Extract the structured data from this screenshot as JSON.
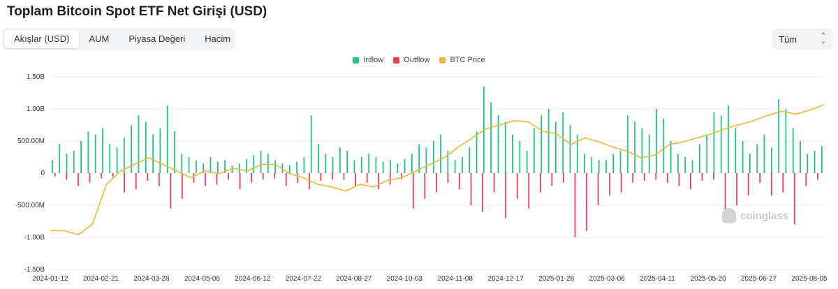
{
  "title": "Toplam Bitcoin Spot ETF Net Girişi (USD)",
  "tabs": [
    {
      "label": "Akışlar (USD)",
      "active": true
    },
    {
      "label": "AUM",
      "active": false
    },
    {
      "label": "Piyasa Değeri",
      "active": false
    },
    {
      "label": "Hacim",
      "active": false
    }
  ],
  "range_select": {
    "value": "Tüm"
  },
  "legend": [
    {
      "label": "Inflow",
      "color": "#1fc47e"
    },
    {
      "label": "Outflow",
      "color": "#ea3b5a"
    },
    {
      "label": "BTC Price",
      "color": "#e8b93a"
    }
  ],
  "watermark": "coinglass",
  "chart_data": {
    "type": "bar",
    "title": "Toplam Bitcoin Spot ETF Net Girişi (USD)",
    "y_ticks": [
      "1.50B",
      "1.00B",
      "500.00M",
      "0",
      "-500.00M",
      "-1.00B",
      "-1.50B"
    ],
    "ylim": [
      -1500000000,
      1500000000
    ],
    "x_ticks": [
      "2024-01-12",
      "2024-02-21",
      "2024-03-28",
      "2024-05-06",
      "2024-06-12",
      "2024-07-22",
      "2024-08-27",
      "2024-10-03",
      "2024-11-08",
      "2024-12-17",
      "2025-01-28",
      "2025-03-06",
      "2025-04-11",
      "2025-05-20",
      "2025-06-27",
      "2025-08-05"
    ],
    "grid": true,
    "legend_position": "top-center",
    "series": [
      {
        "name": "Inflow",
        "color": "#1fc47e",
        "values_millions_by_period": [
          200,
          450,
          300,
          350,
          500,
          650,
          600,
          700,
          450,
          400,
          550,
          750,
          900,
          800,
          600,
          700,
          1050,
          650,
          300,
          250,
          200,
          150,
          250,
          180,
          200,
          120,
          150,
          220,
          280,
          350,
          300,
          200,
          150,
          120,
          180,
          250,
          900,
          450,
          300,
          250,
          400,
          350,
          200,
          250,
          300,
          250,
          180,
          200,
          150,
          220,
          300,
          450,
          400,
          500,
          600,
          350,
          200,
          250,
          400,
          650,
          1350,
          1100,
          900,
          800,
          600,
          500,
          350,
          700,
          900,
          1000,
          800,
          950,
          750,
          600,
          300,
          250,
          200,
          200,
          300,
          350,
          900,
          800,
          700,
          600,
          1000,
          850,
          500,
          300,
          250,
          200,
          450,
          600,
          950,
          900,
          1050,
          700,
          500,
          300,
          450,
          600,
          400,
          1150,
          1000,
          700,
          500,
          300,
          350,
          420
        ]
      },
      {
        "name": "Outflow",
        "color": "#ea3b5a",
        "values_millions_by_period": [
          -50,
          -100,
          -200,
          -150,
          -80,
          -60,
          -300,
          -250,
          -120,
          -200,
          -550,
          -400,
          -150,
          -200,
          -180,
          -100,
          -250,
          -150,
          -100,
          -80,
          -200,
          -150,
          -250,
          -120,
          -100,
          -100,
          -200,
          -150,
          -250,
          -180,
          -100,
          -550,
          -400,
          -300,
          -150,
          -250,
          -500,
          -600,
          -300,
          -700,
          -400,
          -550,
          -300,
          -200,
          -150,
          -1000,
          -900,
          -500,
          -350,
          -300,
          -150,
          -120,
          -100,
          -150,
          -200,
          -250,
          -120,
          -100,
          -600,
          -500,
          -350,
          -150,
          -350,
          -300,
          -800,
          -200,
          -100
        ]
      },
      {
        "name": "BTC Price",
        "color": "#e8b93a",
        "relative_level_by_period": [
          0.05,
          0.05,
          0.02,
          0.1,
          0.4,
          0.5,
          0.55,
          0.6,
          0.55,
          0.5,
          0.45,
          0.5,
          0.48,
          0.52,
          0.5,
          0.55,
          0.55,
          0.48,
          0.45,
          0.4,
          0.38,
          0.35,
          0.4,
          0.38,
          0.43,
          0.45,
          0.5,
          0.55,
          0.6,
          0.68,
          0.75,
          0.82,
          0.85,
          0.88,
          0.87,
          0.8,
          0.78,
          0.7,
          0.75,
          0.72,
          0.68,
          0.65,
          0.6,
          0.62,
          0.7,
          0.72,
          0.75,
          0.78,
          0.82,
          0.85,
          0.88,
          0.92,
          0.95,
          0.93,
          0.96,
          1.0
        ]
      }
    ]
  }
}
